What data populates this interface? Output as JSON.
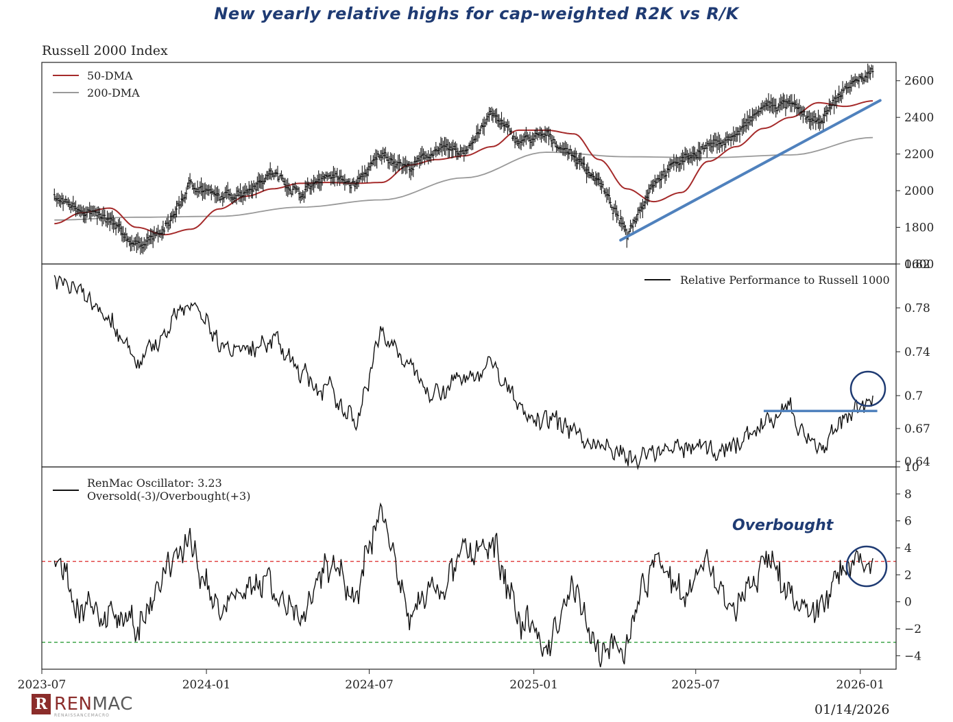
{
  "headline": "New yearly relative highs for cap-weighted R2K vs R/K",
  "date_stamp": "01/14/2026",
  "logo": {
    "name": "RENMAC",
    "sub": "RENAISSANCEMACRO"
  },
  "colors": {
    "price": "#111111",
    "dma50": "#a52a2a",
    "dma200": "#999999",
    "trend": "#4f81bd",
    "overbought": "#e03a3a",
    "oversold": "#2e9e3a",
    "annotation": "#1f3b73"
  },
  "chart_data": [
    {
      "type": "line",
      "title": "Russell 2000 Index",
      "ylim": [
        1600,
        2700
      ],
      "yticks": [
        "1600",
        "1800",
        "2000",
        "2200",
        "2400",
        "2600"
      ],
      "legend_position": "top-left",
      "series": [
        {
          "name": "50-DMA",
          "x": [
            "2023-07",
            "2023-08",
            "2023-09",
            "2023-10",
            "2023-11",
            "2023-12",
            "2024-01",
            "2024-02",
            "2024-03",
            "2024-04",
            "2024-05",
            "2024-06",
            "2024-07",
            "2024-08",
            "2024-09",
            "2024-10",
            "2024-11",
            "2024-12",
            "2025-01",
            "2025-02",
            "2025-03",
            "2025-04",
            "2025-05",
            "2025-06",
            "2025-07",
            "2025-08",
            "2025-09",
            "2025-10",
            "2025-11",
            "2025-12",
            "2026-01"
          ],
          "values": [
            1820,
            1880,
            1905,
            1800,
            1760,
            1790,
            1900,
            1970,
            2010,
            2040,
            2045,
            2040,
            2045,
            2140,
            2170,
            2190,
            2240,
            2330,
            2330,
            2310,
            2170,
            2010,
            1940,
            1990,
            2160,
            2240,
            2340,
            2400,
            2480,
            2460,
            2490
          ]
        },
        {
          "name": "200-DMA",
          "x": [
            "2023-07",
            "2023-10",
            "2024-01",
            "2024-04",
            "2024-07",
            "2024-10",
            "2025-01",
            "2025-04",
            "2025-07",
            "2025-10",
            "2026-01"
          ],
          "values": [
            1840,
            1855,
            1860,
            1910,
            1950,
            2070,
            2210,
            2185,
            2180,
            2195,
            2290
          ]
        },
        {
          "name": "Russell 2000 Index",
          "x": [
            "2023-07",
            "2023-08",
            "2023-09",
            "2023-10",
            "2023-11",
            "2023-12",
            "2024-01",
            "2024-02",
            "2024-03",
            "2024-04",
            "2024-05",
            "2024-06",
            "2024-07",
            "2024-08",
            "2024-09",
            "2024-10",
            "2024-11",
            "2024-12",
            "2025-01",
            "2025-02",
            "2025-03",
            "2025-04",
            "2025-05",
            "2025-06",
            "2025-07",
            "2025-08",
            "2025-09",
            "2025-10",
            "2025-11",
            "2025-12",
            "2026-01"
          ],
          "values": [
            1960,
            1900,
            1830,
            1700,
            1780,
            2040,
            1960,
            2000,
            2100,
            1980,
            2090,
            2030,
            2200,
            2120,
            2230,
            2210,
            2420,
            2270,
            2300,
            2190,
            2050,
            1760,
            2050,
            2170,
            2240,
            2300,
            2460,
            2470,
            2360,
            2560,
            2650
          ]
        }
      ],
      "trendline": {
        "x": [
          "2025-04-08",
          "2026-01-14"
        ],
        "y": [
          1730,
          2470
        ]
      }
    },
    {
      "type": "line",
      "ylim": [
        0.635,
        0.82
      ],
      "yticks": [
        "0.64",
        "0.67",
        "0.7",
        "0.74",
        "0.78",
        "0.82"
      ],
      "legend_position": "top-right",
      "series": [
        {
          "name": "Relative Performance to Russell 1000",
          "x": [
            "2023-07",
            "2023-08",
            "2023-09",
            "2023-10",
            "2023-11",
            "2023-12",
            "2024-01",
            "2024-02",
            "2024-03",
            "2024-04",
            "2024-05",
            "2024-06",
            "2024-07",
            "2024-08",
            "2024-09",
            "2024-10",
            "2024-11",
            "2024-12",
            "2025-01",
            "2025-02",
            "2025-03",
            "2025-04",
            "2025-05",
            "2025-06",
            "2025-07",
            "2025-08",
            "2025-09",
            "2025-10",
            "2025-11",
            "2025-12",
            "2026-01"
          ],
          "values": [
            0.81,
            0.795,
            0.77,
            0.73,
            0.755,
            0.79,
            0.75,
            0.74,
            0.755,
            0.72,
            0.705,
            0.675,
            0.76,
            0.725,
            0.705,
            0.715,
            0.73,
            0.69,
            0.68,
            0.665,
            0.655,
            0.643,
            0.645,
            0.653,
            0.65,
            0.655,
            0.675,
            0.685,
            0.65,
            0.68,
            0.7
          ]
        }
      ],
      "resistance": {
        "x": [
          "2025-09-15",
          "2026-01-20"
        ],
        "y": [
          0.686,
          0.686
        ]
      }
    },
    {
      "type": "line",
      "ylim": [
        -5,
        10
      ],
      "yticks": [
        "-4",
        "-2",
        "0",
        "2",
        "4",
        "6",
        "8",
        "10"
      ],
      "xlim": [
        "2023-07-01",
        "2026-02-10"
      ],
      "xticks": [
        "2023-07",
        "2024-01",
        "2024-07",
        "2025-01",
        "2025-07",
        "2026-01"
      ],
      "legend_position": "top-left",
      "series": [
        {
          "name": "RenMac Oscillator: 3.23",
          "x": [
            "2023-07",
            "2023-08",
            "2023-09",
            "2023-10",
            "2023-11",
            "2023-12",
            "2024-01",
            "2024-02",
            "2024-03",
            "2024-04",
            "2024-05",
            "2024-06",
            "2024-07",
            "2024-08",
            "2024-09",
            "2024-10",
            "2024-11",
            "2024-12",
            "2025-01",
            "2025-02",
            "2025-03",
            "2025-04",
            "2025-05",
            "2025-06",
            "2025-07",
            "2025-08",
            "2025-09",
            "2025-10",
            "2025-11",
            "2025-12",
            "2026-01"
          ],
          "values": [
            3.5,
            -1,
            0,
            -2.5,
            1.5,
            4.5,
            -1,
            2,
            1,
            -2,
            3,
            0,
            7,
            -1,
            1,
            3,
            4.5,
            -1,
            -3.5,
            1,
            -3.5,
            -3,
            3,
            1,
            3,
            -1,
            3,
            1,
            -1,
            3,
            3.23
          ]
        }
      ],
      "overbought": {
        "label": "Oversold(-3)/Overbought(+3)",
        "value": 3
      },
      "oversold": {
        "value": -3
      },
      "annotation": "Overbought"
    }
  ]
}
